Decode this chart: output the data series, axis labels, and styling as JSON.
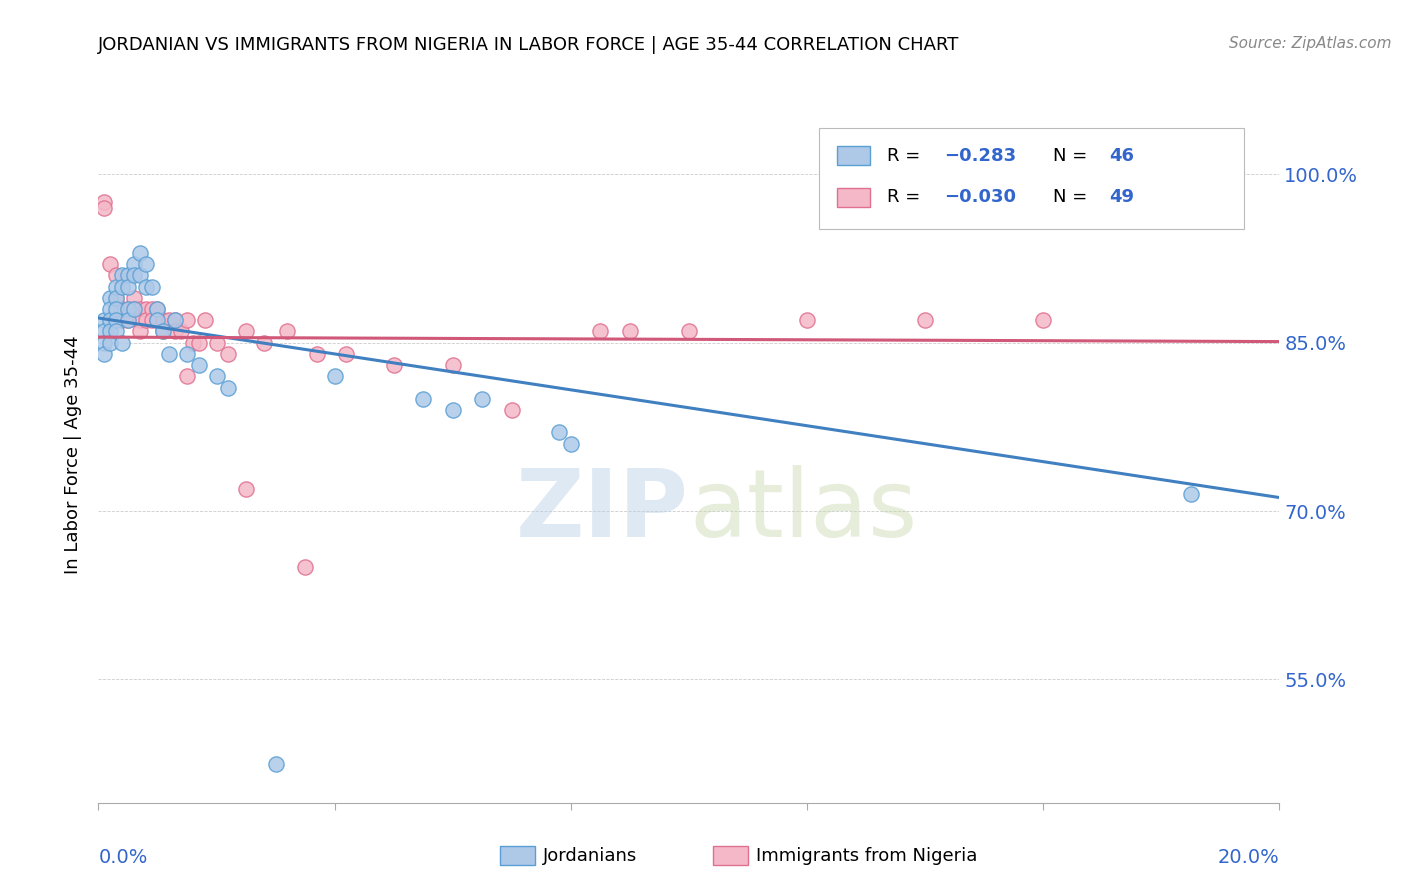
{
  "title": "JORDANIAN VS IMMIGRANTS FROM NIGERIA IN LABOR FORCE | AGE 35-44 CORRELATION CHART",
  "source": "Source: ZipAtlas.com",
  "ylabel": "In Labor Force | Age 35-44",
  "y_ticks": [
    0.55,
    0.7,
    0.85,
    1.0
  ],
  "y_tick_labels": [
    "55.0%",
    "70.0%",
    "85.0%",
    "100.0%"
  ],
  "x_lim": [
    0.0,
    0.2
  ],
  "y_lim": [
    0.44,
    1.06
  ],
  "color_blue": "#aec9e8",
  "color_pink": "#f4b8c8",
  "color_blue_edge": "#5a9fd4",
  "color_pink_edge": "#e07090",
  "color_blue_line": "#4080c0",
  "color_pink_line": "#d05878",
  "color_axis_labels": "#3366cc",
  "watermark": "ZIPatlas",
  "jordanians_x": [
    0.001,
    0.001,
    0.001,
    0.001,
    0.002,
    0.002,
    0.002,
    0.002,
    0.002,
    0.003,
    0.003,
    0.003,
    0.003,
    0.003,
    0.004,
    0.004,
    0.004,
    0.005,
    0.005,
    0.005,
    0.005,
    0.006,
    0.006,
    0.006,
    0.007,
    0.007,
    0.008,
    0.008,
    0.009,
    0.01,
    0.01,
    0.011,
    0.012,
    0.013,
    0.015,
    0.017,
    0.02,
    0.022,
    0.04,
    0.055,
    0.06,
    0.065,
    0.078,
    0.08,
    0.185,
    0.03
  ],
  "jordanians_y": [
    0.87,
    0.86,
    0.85,
    0.84,
    0.89,
    0.88,
    0.87,
    0.86,
    0.85,
    0.9,
    0.89,
    0.88,
    0.87,
    0.86,
    0.91,
    0.9,
    0.85,
    0.91,
    0.9,
    0.88,
    0.87,
    0.92,
    0.91,
    0.88,
    0.93,
    0.91,
    0.92,
    0.9,
    0.9,
    0.88,
    0.87,
    0.86,
    0.84,
    0.87,
    0.84,
    0.83,
    0.82,
    0.81,
    0.82,
    0.8,
    0.79,
    0.8,
    0.77,
    0.76,
    0.715,
    0.475
  ],
  "nigeria_x": [
    0.001,
    0.001,
    0.002,
    0.003,
    0.003,
    0.004,
    0.004,
    0.005,
    0.005,
    0.006,
    0.006,
    0.007,
    0.007,
    0.007,
    0.008,
    0.008,
    0.009,
    0.009,
    0.01,
    0.01,
    0.011,
    0.011,
    0.012,
    0.013,
    0.013,
    0.014,
    0.015,
    0.016,
    0.017,
    0.018,
    0.02,
    0.022,
    0.025,
    0.028,
    0.032,
    0.037,
    0.042,
    0.05,
    0.06,
    0.07,
    0.085,
    0.09,
    0.1,
    0.12,
    0.14,
    0.16,
    0.015,
    0.025,
    0.035
  ],
  "nigeria_y": [
    0.975,
    0.97,
    0.92,
    0.91,
    0.89,
    0.88,
    0.87,
    0.88,
    0.87,
    0.89,
    0.88,
    0.88,
    0.87,
    0.86,
    0.88,
    0.87,
    0.88,
    0.87,
    0.88,
    0.87,
    0.87,
    0.86,
    0.87,
    0.87,
    0.86,
    0.86,
    0.87,
    0.85,
    0.85,
    0.87,
    0.85,
    0.84,
    0.86,
    0.85,
    0.86,
    0.84,
    0.84,
    0.83,
    0.83,
    0.79,
    0.86,
    0.86,
    0.86,
    0.87,
    0.87,
    0.87,
    0.82,
    0.72,
    0.65
  ],
  "blue_line_x0": 0.0,
  "blue_line_y0": 0.872,
  "blue_line_x1": 0.2,
  "blue_line_y1": 0.712,
  "pink_line_x0": 0.0,
  "pink_line_y0": 0.855,
  "pink_line_x1": 0.2,
  "pink_line_y1": 0.851
}
